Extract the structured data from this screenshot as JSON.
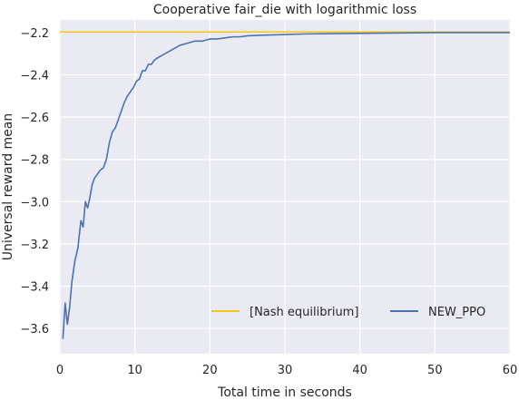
{
  "chart_data": {
    "type": "line",
    "title": "Cooperative fair_die with logarithmic loss",
    "xlabel": "Total time in seconds",
    "ylabel": "Universal reward mean",
    "xlim": [
      0,
      60
    ],
    "ylim": [
      -3.72,
      -2.14
    ],
    "xticks": [
      0,
      10,
      20,
      30,
      40,
      50,
      60
    ],
    "xtick_labels": [
      "0",
      "10",
      "20",
      "30",
      "40",
      "50",
      "60"
    ],
    "yticks": [
      -2.2,
      -2.4,
      -2.6,
      -2.8,
      -3.0,
      -3.2,
      -3.4,
      -3.6
    ],
    "ytick_labels": [
      "−2.2",
      "−2.4",
      "−2.6",
      "−2.8",
      "−3.0",
      "−3.2",
      "−3.4",
      "−3.6"
    ],
    "grid": true,
    "legend_position": "lower right",
    "background": "#eaeaf2",
    "series": [
      {
        "name": "[Nash equilibrium]",
        "color": "#f5c518",
        "x": [
          0,
          60
        ],
        "y": [
          -2.197,
          -2.197
        ]
      },
      {
        "name": "NEW_PPO",
        "color": "#4c72b0",
        "x": [
          0.4,
          0.7,
          1.0,
          1.3,
          1.6,
          2.0,
          2.4,
          2.8,
          3.1,
          3.4,
          3.7,
          4.0,
          4.3,
          4.6,
          5.0,
          5.4,
          5.8,
          6.2,
          6.6,
          7.0,
          7.4,
          7.8,
          8.2,
          8.6,
          9.0,
          9.4,
          9.8,
          10.2,
          10.6,
          11.0,
          11.4,
          11.8,
          12.2,
          12.6,
          13.0,
          13.5,
          14.0,
          14.5,
          15.0,
          16.0,
          17.0,
          18.0,
          19.0,
          20.0,
          21.0,
          22.0,
          23.0,
          24.0,
          25.0,
          27.0,
          29.0,
          31.0,
          33.0,
          35.0,
          38.0,
          41.0,
          44.0,
          47.0,
          50.0,
          53.0,
          56.0,
          60.0
        ],
        "y": [
          -3.65,
          -3.48,
          -3.58,
          -3.5,
          -3.38,
          -3.28,
          -3.22,
          -3.09,
          -3.12,
          -3.0,
          -3.03,
          -2.98,
          -2.92,
          -2.89,
          -2.87,
          -2.85,
          -2.84,
          -2.8,
          -2.72,
          -2.67,
          -2.65,
          -2.61,
          -2.57,
          -2.53,
          -2.5,
          -2.48,
          -2.46,
          -2.43,
          -2.42,
          -2.38,
          -2.38,
          -2.35,
          -2.35,
          -2.33,
          -2.32,
          -2.31,
          -2.3,
          -2.29,
          -2.28,
          -2.26,
          -2.25,
          -2.24,
          -2.24,
          -2.23,
          -2.23,
          -2.225,
          -2.22,
          -2.22,
          -2.215,
          -2.212,
          -2.21,
          -2.208,
          -2.206,
          -2.205,
          -2.204,
          -2.203,
          -2.202,
          -2.201,
          -2.2,
          -2.2,
          -2.2,
          -2.2
        ]
      }
    ]
  }
}
